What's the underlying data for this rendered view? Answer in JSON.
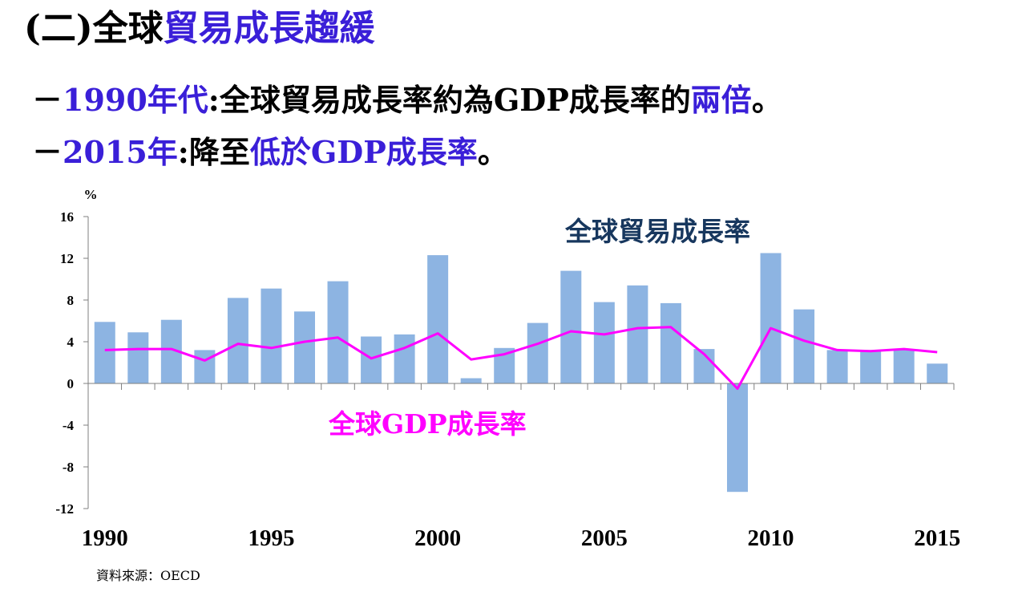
{
  "heading": {
    "prefix": "(二)全球",
    "highlight": "貿易成長趨緩"
  },
  "bullets": [
    {
      "dash": "－",
      "year": "1990年代",
      "colon": ":",
      "text": "全球貿易成長率約為GDP成長率的",
      "emph": "兩倍",
      "end": "。"
    },
    {
      "dash": "－",
      "year": "2015年",
      "colon": ":",
      "text": "降至",
      "emph": "低於GDP成長率",
      "end": "。"
    }
  ],
  "source": "資料來源：OECD",
  "colors": {
    "bar": "#8db4e2",
    "line": "#ff00ff",
    "trade_label": "#17375e",
    "gdp_label": "#ff00ff",
    "highlight": "#3a1fd8"
  },
  "chart_data": {
    "type": "bar",
    "ylabel": "%",
    "ylim": [
      -12,
      16
    ],
    "yticks": [
      16,
      12,
      8,
      4,
      0,
      -4,
      -8,
      -12
    ],
    "x": [
      1990,
      1991,
      1992,
      1993,
      1994,
      1995,
      1996,
      1997,
      1998,
      1999,
      2000,
      2001,
      2002,
      2003,
      2004,
      2005,
      2006,
      2007,
      2008,
      2009,
      2010,
      2011,
      2012,
      2013,
      2014,
      2015
    ],
    "xtick_labels": [
      "1990",
      "1995",
      "2000",
      "2005",
      "2010",
      "2015"
    ],
    "xtick_values": [
      1990,
      1995,
      2000,
      2005,
      2010,
      2015
    ],
    "series": [
      {
        "name": "全球貿易成長率",
        "kind": "bar",
        "values": [
          5.9,
          4.9,
          6.1,
          3.2,
          8.2,
          9.1,
          6.9,
          9.8,
          4.5,
          4.7,
          12.3,
          0.5,
          3.4,
          5.8,
          10.8,
          7.8,
          9.4,
          7.7,
          3.3,
          -10.4,
          12.5,
          7.1,
          3.2,
          3.2,
          3.3,
          1.9
        ]
      },
      {
        "name": "全球GDP成長率",
        "kind": "line",
        "values": [
          3.2,
          3.3,
          3.3,
          2.2,
          3.8,
          3.4,
          4.0,
          4.4,
          2.4,
          3.4,
          4.8,
          2.3,
          2.8,
          3.8,
          5.0,
          4.7,
          5.3,
          5.4,
          2.8,
          -0.5,
          5.3,
          4.1,
          3.2,
          3.1,
          3.3,
          3.0
        ]
      }
    ]
  }
}
